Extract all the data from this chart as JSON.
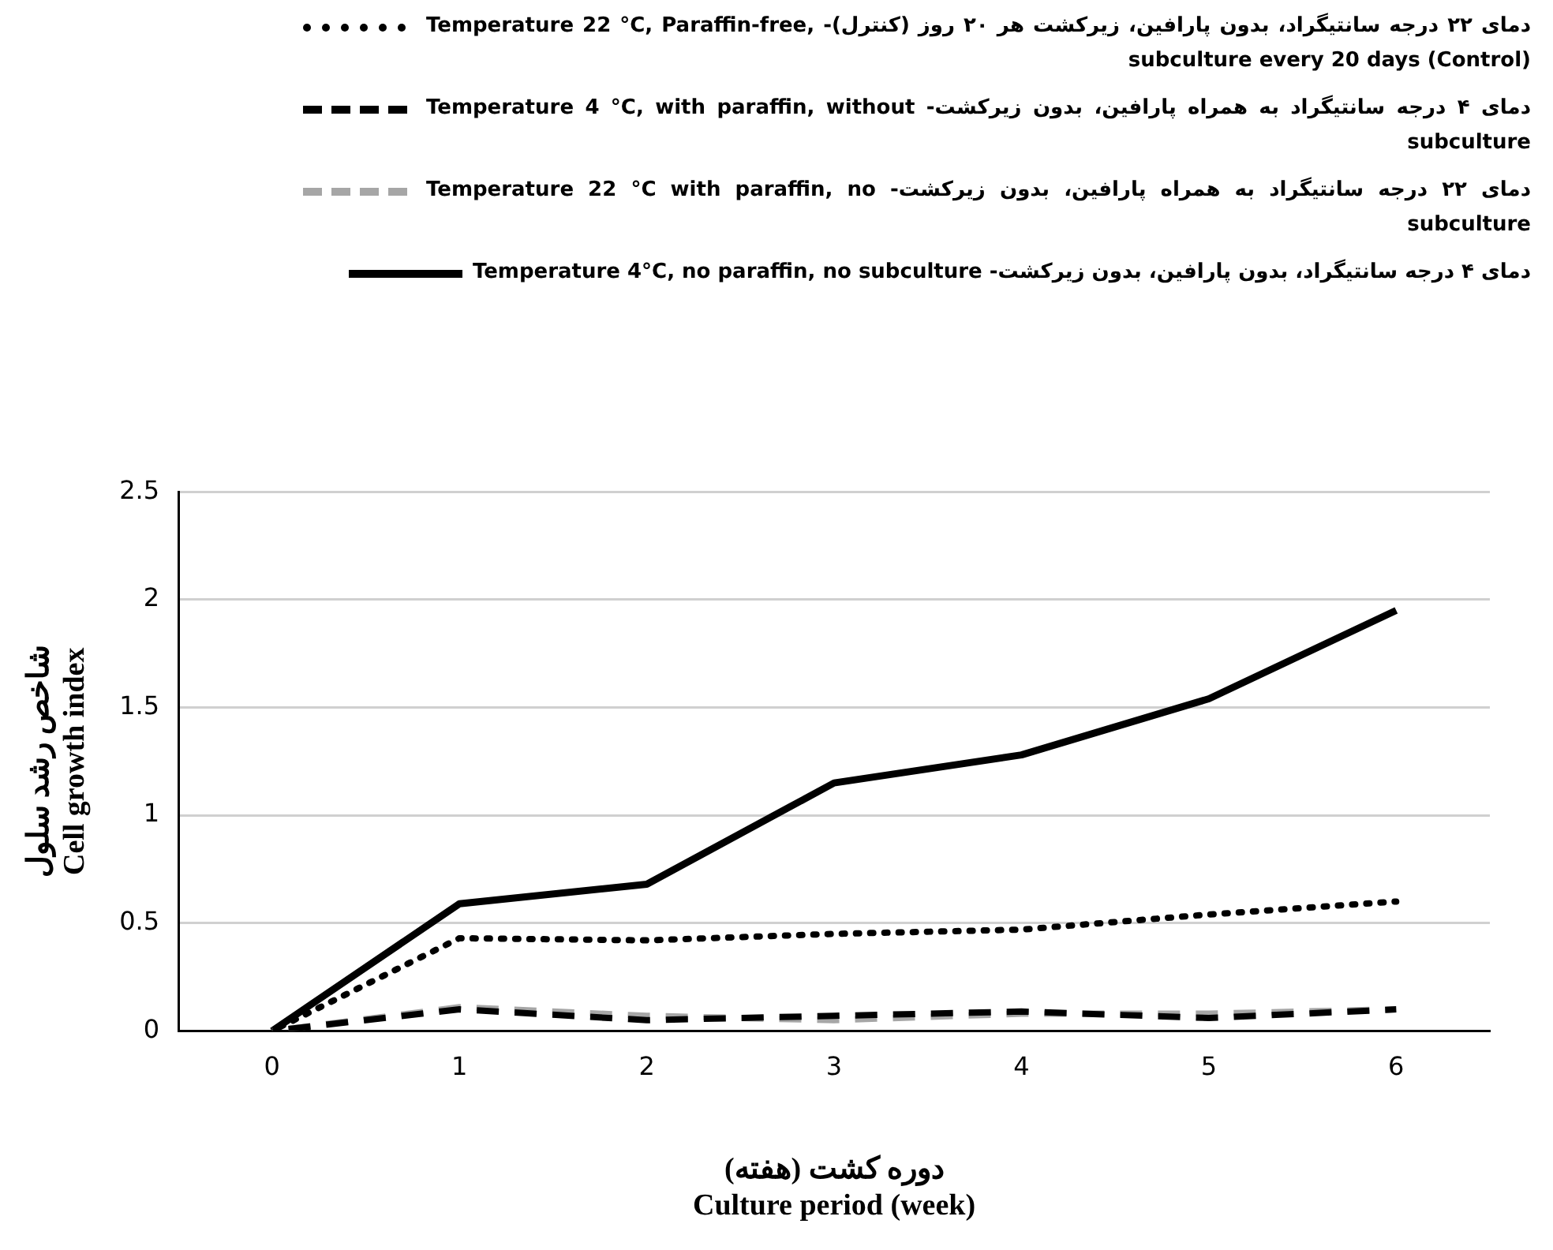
{
  "chart_data": {
    "type": "line",
    "xlabel": "دوره کشت (هفته)\nCulture period (week)",
    "ylabel": "شاخص رشد سلول\nCell growth index",
    "categories": [
      "0",
      "1",
      "2",
      "3",
      "4",
      "5",
      "6"
    ],
    "ylim": [
      0,
      2.5
    ],
    "yticks": [
      0,
      0.5,
      1,
      1.5,
      2,
      2.5
    ],
    "grid": "y",
    "legend": "top",
    "marker": "none",
    "series": [
      {
        "name": "دمای ۲۲ درجه سانتیگراد، بدون پارافین، زیرکشت هر ۲۰ روز (کنترل)- Temperature 22 °C, Paraffin-free, subculture every 20 days (Control)",
        "color": "#000000",
        "line_style": "dotted",
        "values": [
          0,
          0.43,
          0.42,
          0.45,
          0.47,
          0.54,
          0.6
        ]
      },
      {
        "name": "دمای ۴ درجه سانتیگراد به همراه پارافین، بدون زیرکشت- Temperature 4 °C, with paraffin, without subculture",
        "color": "#000000",
        "line_style": "dashed",
        "values": [
          0,
          0.1,
          0.05,
          0.07,
          0.09,
          0.06,
          0.1
        ]
      },
      {
        "name": "دمای ۲۲ درجه سانتیگراد به همراه پارافین، بدون زیرکشت- Temperature 22 °C with paraffin, no subculture",
        "color": "#a6a6a6",
        "line_style": "dashed",
        "values": [
          0,
          0.11,
          0.07,
          0.05,
          0.08,
          0.08,
          0.1
        ]
      },
      {
        "name": "دمای ۴ درجه سانتیگراد، بدون پارافین، بدون زیرکشت- Temperature 4°C, no paraffin, no subculture",
        "color": "#000000",
        "line_style": "solid",
        "values": [
          0,
          0.59,
          0.68,
          1.15,
          1.28,
          1.54,
          1.95
        ]
      }
    ]
  }
}
